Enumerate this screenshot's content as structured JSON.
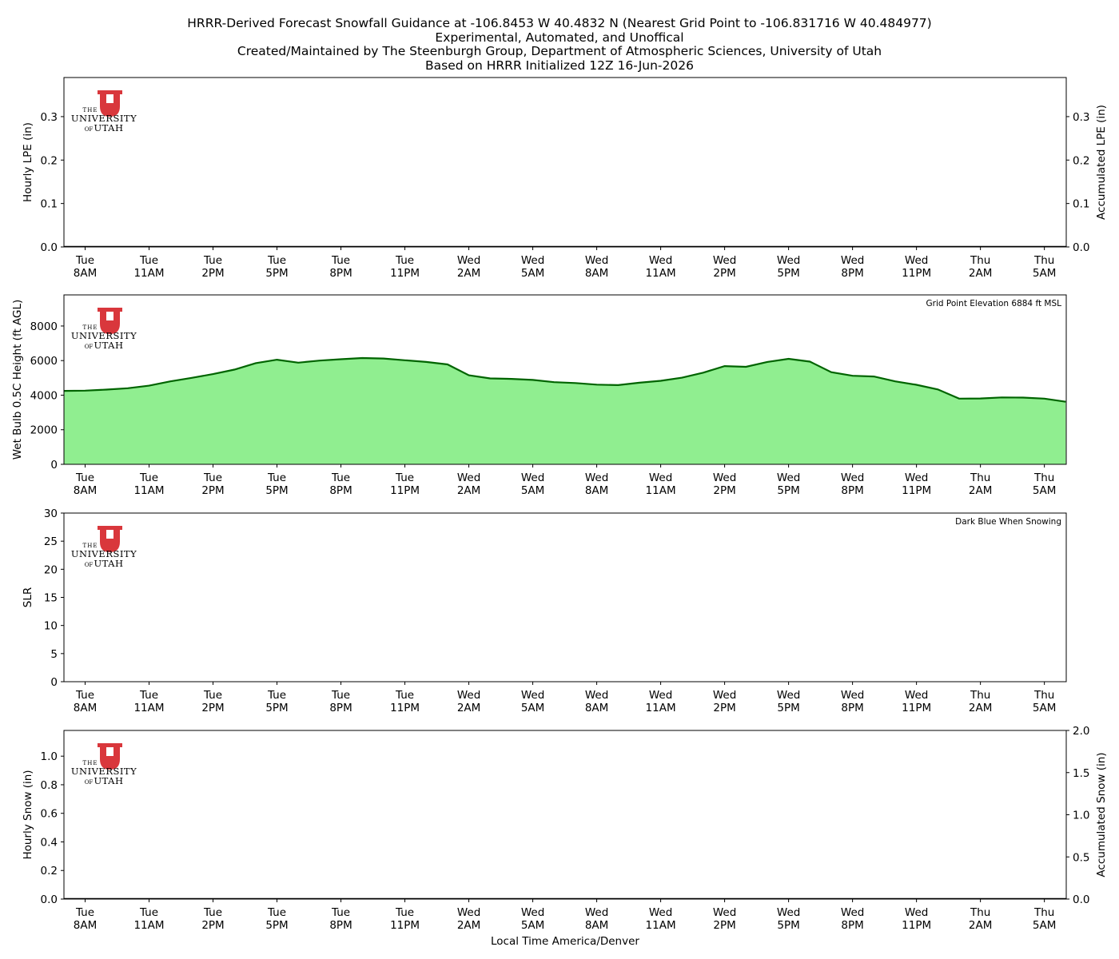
{
  "title_lines": [
    "HRRR-Derived Forecast Snowfall Guidance at -106.8453 W 40.4832 N (Nearest Grid Point to -106.831716 W 40.484977)",
    "Experimental, Automated, and Unoffical",
    "Created/Maintained by The Steenburgh Group, Department of Atmospheric Sciences, University of Utah",
    "Based on HRRR Initialized 12Z 16-Jun-2026"
  ],
  "logo": {
    "line1": "THE",
    "line2": "UNIVERSITY",
    "line3_small": "OF",
    "line3": "UTAH",
    "color": "#d9373c"
  },
  "shared_x": {
    "xlabel": "Local Time America/Denver",
    "tick_days": [
      "Tue",
      "Tue",
      "Tue",
      "Tue",
      "Tue",
      "Tue",
      "Wed",
      "Wed",
      "Wed",
      "Wed",
      "Wed",
      "Wed",
      "Wed",
      "Wed",
      "Thu",
      "Thu"
    ],
    "tick_times": [
      "8AM",
      "11AM",
      "2PM",
      "5PM",
      "8PM",
      "11PM",
      "2AM",
      "5AM",
      "8AM",
      "11AM",
      "2PM",
      "5PM",
      "8PM",
      "11PM",
      "2AM",
      "5AM"
    ]
  },
  "chart_data": [
    {
      "type": "bar",
      "ylabel": "Hourly LPE (in)",
      "ylim": [
        0,
        0.39
      ],
      "yticks": [
        "0.0",
        "0.1",
        "0.2",
        "0.3"
      ],
      "y2label": "Accumulated LPE (in)",
      "y2lim": [
        0,
        0.39
      ],
      "y2ticks": [
        "0.0",
        "0.1",
        "0.2",
        "0.3"
      ],
      "values": [],
      "accumulated": []
    },
    {
      "type": "area",
      "ylabel": "Wet Bulb 0.5C Height (ft AGL)",
      "ylim": [
        0,
        9800
      ],
      "yticks": [
        "0",
        "2000",
        "4000",
        "6000",
        "8000"
      ],
      "annotation": "Grid Point Elevation 6884 ft MSL",
      "fill_color": "#90ee90",
      "line_color": "#006400",
      "hours_from_start": [
        -1,
        0,
        1,
        2,
        3,
        4,
        5,
        6,
        7,
        8,
        9,
        10,
        11,
        12,
        13,
        14,
        15,
        16,
        17,
        18,
        19,
        20,
        21,
        22,
        23,
        24,
        25,
        26,
        27,
        28,
        29,
        30,
        31,
        32,
        33,
        34,
        35,
        36,
        37,
        38,
        39,
        40,
        41,
        42,
        43,
        44,
        45,
        46
      ],
      "values": [
        4250,
        4260,
        4320,
        4400,
        4550,
        4800,
        5000,
        5220,
        5480,
        5850,
        6050,
        5880,
        6000,
        6080,
        6150,
        6120,
        6020,
        5920,
        5780,
        5150,
        4970,
        4940,
        4880,
        4750,
        4700,
        4610,
        4580,
        4720,
        4830,
        5010,
        5300,
        5680,
        5640,
        5920,
        6100,
        5940,
        5330,
        5120,
        5080,
        4800,
        4600,
        4330,
        3800,
        3810,
        3870,
        3860,
        3800,
        3620
      ]
    },
    {
      "type": "bar",
      "ylabel": "SLR",
      "ylim": [
        0,
        30
      ],
      "yticks": [
        "0",
        "5",
        "10",
        "15",
        "20",
        "25",
        "30"
      ],
      "annotation": "Dark Blue When Snowing",
      "values": []
    },
    {
      "type": "bar",
      "ylabel": "Hourly Snow (in)",
      "ylim": [
        0,
        1.18
      ],
      "yticks": [
        "0.0",
        "0.2",
        "0.4",
        "0.6",
        "0.8",
        "1.0"
      ],
      "y2label": "Accumulated Snow (in)",
      "y2lim": [
        0,
        2.0
      ],
      "y2ticks": [
        "0.0",
        "0.5",
        "1.0",
        "1.5",
        "2.0"
      ],
      "values": [],
      "accumulated": []
    }
  ]
}
